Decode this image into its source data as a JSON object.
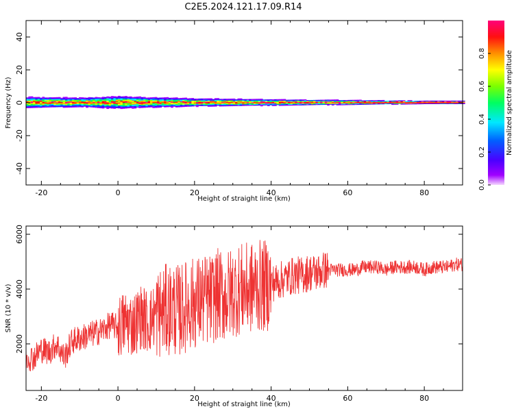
{
  "title": "C2E5.2024.121.17.09.R14",
  "chart_data": [
    {
      "type": "heatmap",
      "xlabel": "Height of straight line (km)",
      "ylabel": "Frequency (Hz)",
      "xlim": [
        -24,
        90
      ],
      "ylim": [
        -50,
        50
      ],
      "xticks": [
        -20,
        0,
        20,
        40,
        60,
        80
      ],
      "yticks": [
        -40,
        -20,
        0,
        20,
        40
      ],
      "colorbar": {
        "label": "Normalized spectral amplitude",
        "range": [
          0.0,
          1.0
        ],
        "ticks": [
          0.0,
          0.2,
          0.4,
          0.6,
          0.8
        ],
        "colormap": "rainbow (violet → blue → cyan → green → yellow → orange → red → magenta)"
      },
      "signal_band": {
        "center_frequency_hz": 0,
        "half_width_hz_by_height": [
          {
            "x": -24,
            "hw": 3.5
          },
          {
            "x": -10,
            "hw": 3.0
          },
          {
            "x": 0,
            "hw": 4.0
          },
          {
            "x": 5,
            "hw": 3.5
          },
          {
            "x": 20,
            "hw": 2.5
          },
          {
            "x": 40,
            "hw": 2.0
          },
          {
            "x": 60,
            "hw": 1.5
          },
          {
            "x": 80,
            "hw": 1.0
          },
          {
            "x": 90,
            "hw": 1.0
          }
        ],
        "peak_amplitude": 1.0
      }
    },
    {
      "type": "line",
      "xlabel": "Height of straight line (km)",
      "ylabel": "SNR (10 * v/v)",
      "xlim": [
        -24,
        90
      ],
      "ylim": [
        300,
        6300
      ],
      "xticks": [
        -20,
        0,
        20,
        40,
        60,
        80
      ],
      "yticks": [
        2000,
        4000,
        6000
      ],
      "color": "#ee3333",
      "series": [
        {
          "x": [
            -24,
            -22,
            -20,
            -18,
            -16,
            -14,
            -12,
            -10,
            -8,
            -6,
            -4,
            -2,
            0,
            2,
            4,
            6,
            8,
            10,
            12,
            14,
            16,
            18,
            20,
            22,
            24,
            26,
            28,
            30,
            32,
            34,
            36,
            38,
            40,
            42,
            44,
            46,
            48,
            50,
            52,
            54,
            56,
            58,
            60,
            62,
            64,
            66,
            68,
            70,
            72,
            74,
            76,
            78,
            80,
            82,
            84,
            86,
            88,
            90
          ],
          "values": [
            1500,
            1500,
            1800,
            1700,
            2000,
            1500,
            2100,
            2200,
            2300,
            2400,
            2500,
            2700,
            2600,
            2800,
            2700,
            3000,
            2800,
            3100,
            3200,
            3300,
            3200,
            3400,
            3500,
            3600,
            3600,
            3800,
            3700,
            3900,
            4000,
            4000,
            4100,
            4100,
            4200,
            4300,
            4400,
            4500,
            4500,
            4600,
            4600,
            4700,
            4700,
            4700,
            4700,
            4700,
            4800,
            4800,
            4800,
            4700,
            4800,
            4800,
            4800,
            4800,
            4700,
            4800,
            4800,
            4800,
            4900,
            4900
          ]
        }
      ]
    }
  ]
}
